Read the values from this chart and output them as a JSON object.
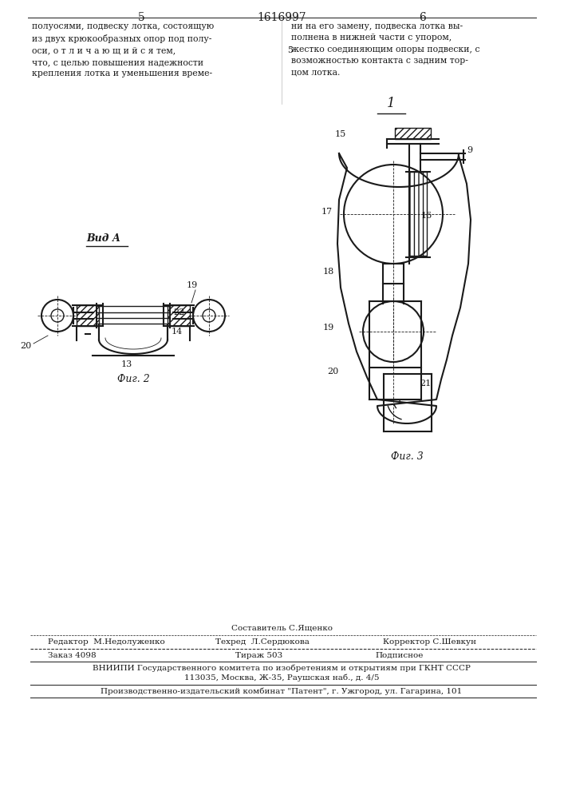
{
  "bg_color": "#ffffff",
  "text_color": "#1a1a1a",
  "page_number_left": "5",
  "page_number_center": "1616997",
  "page_number_right": "6",
  "col": "#1a1a1a"
}
